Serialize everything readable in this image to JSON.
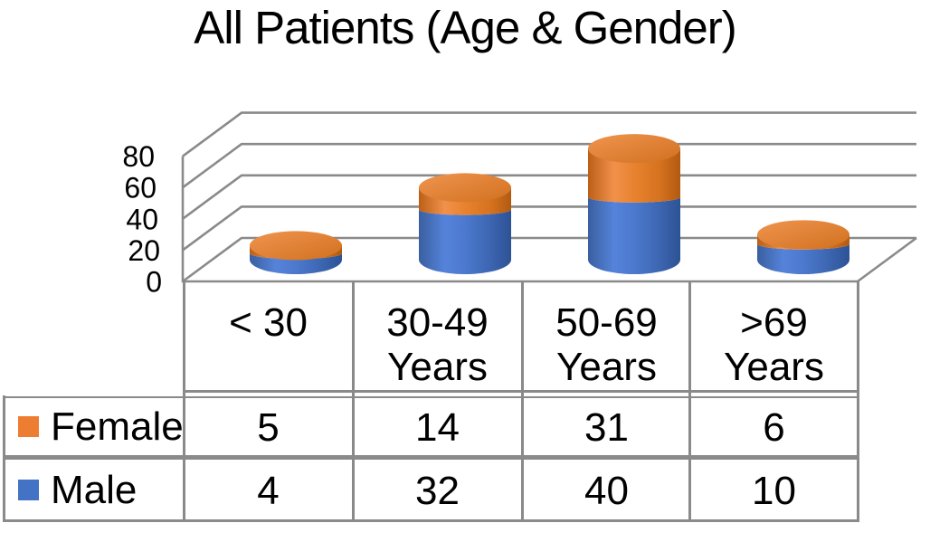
{
  "title": "All Patients (Age & Gender)",
  "chart_data": {
    "type": "bar",
    "variant": "3d-stacked-cylinder",
    "stacking": "stacked",
    "categories": [
      "< 30",
      "30-49\nYears",
      "50-69\nYears",
      ">69\nYears"
    ],
    "series": [
      {
        "name": "Female",
        "color": "#ED7D31",
        "values": [
          5,
          14,
          31,
          6
        ]
      },
      {
        "name": "Male",
        "color": "#4472C4",
        "values": [
          4,
          32,
          40,
          10
        ]
      }
    ],
    "stack_order_bottom_to_top": [
      "Male",
      "Female"
    ],
    "yticks": [
      0,
      20,
      40,
      60,
      80
    ],
    "ylim": [
      0,
      80
    ],
    "grid": true,
    "legend_position": "data-table-left",
    "xlabel": "",
    "ylabel": ""
  },
  "colors": {
    "female": "#ED7D31",
    "male": "#4472C4",
    "gridline": "#8a8a8a",
    "table_border": "#8a8a8a",
    "text": "#000000"
  }
}
